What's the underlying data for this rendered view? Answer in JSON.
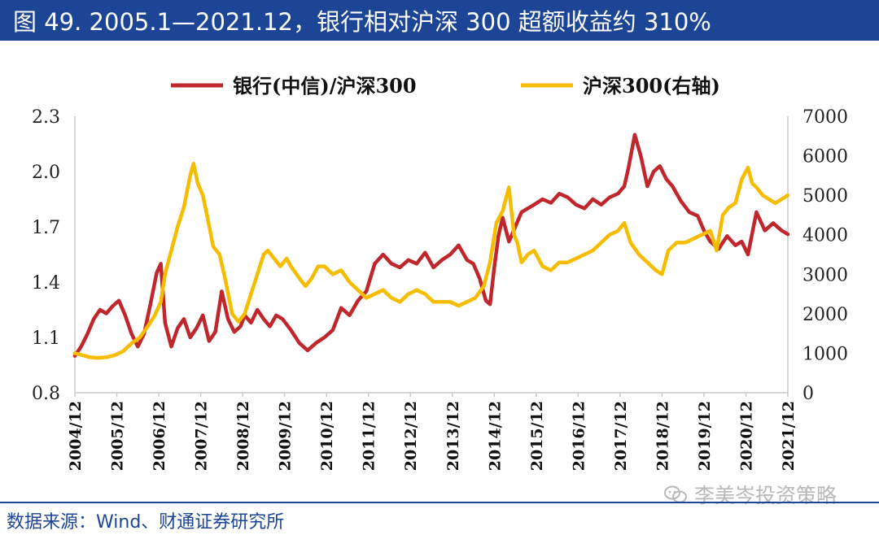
{
  "title": "图 49. 2005.1—2021.12，银行相对沪深 300 超额收益约 310%",
  "source": "数据来源：Wind、财通证券研究所",
  "watermark": "李美岑投资策略",
  "colors": {
    "title_bg": "#1c4595",
    "bank_ratio": "#c0272d",
    "csi300": "#f5bc00",
    "axis": "#c8c8c8"
  },
  "chart_data": {
    "type": "line",
    "title": "",
    "legend": {
      "placement": "top",
      "entries": [
        "银行(中信)/沪深300",
        "沪深300(右轴)"
      ]
    },
    "x_tick_labels": [
      "2004/12",
      "2005/12",
      "2006/12",
      "2007/12",
      "2008/12",
      "2009/12",
      "2010/12",
      "2011/12",
      "2012/12",
      "2013/12",
      "2014/12",
      "2015/12",
      "2016/12",
      "2017/12",
      "2018/12",
      "2019/12",
      "2020/12",
      "2021/12"
    ],
    "y_left": {
      "range": [
        0.8,
        2.3
      ],
      "ticks": [
        "0.8",
        "1.1",
        "1.4",
        "1.7",
        "2.0",
        "2.3"
      ]
    },
    "y_right": {
      "range": [
        0,
        7000
      ],
      "ticks": [
        "0",
        "1000",
        "2000",
        "3000",
        "4000",
        "5000",
        "6000",
        "7000"
      ]
    },
    "series": [
      {
        "name": "银行(中信)/沪深300",
        "axis": "left",
        "x": [
          2004.95,
          2005.1,
          2005.25,
          2005.4,
          2005.55,
          2005.7,
          2005.85,
          2006.0,
          2006.15,
          2006.3,
          2006.45,
          2006.6,
          2006.75,
          2006.9,
          2007.0,
          2007.1,
          2007.25,
          2007.4,
          2007.55,
          2007.7,
          2007.85,
          2008.0,
          2008.15,
          2008.3,
          2008.45,
          2008.6,
          2008.75,
          2008.9,
          2009.0,
          2009.15,
          2009.3,
          2009.45,
          2009.6,
          2009.75,
          2009.9,
          2010.1,
          2010.3,
          2010.5,
          2010.7,
          2010.9,
          2011.1,
          2011.3,
          2011.5,
          2011.7,
          2011.9,
          2012.1,
          2012.3,
          2012.5,
          2012.7,
          2012.9,
          2013.1,
          2013.3,
          2013.5,
          2013.7,
          2013.9,
          2014.1,
          2014.3,
          2014.45,
          2014.6,
          2014.75,
          2014.85,
          2014.95,
          2015.05,
          2015.15,
          2015.3,
          2015.45,
          2015.6,
          2015.75,
          2015.9,
          2016.1,
          2016.3,
          2016.5,
          2016.7,
          2016.9,
          2017.1,
          2017.3,
          2017.5,
          2017.7,
          2017.9,
          2018.05,
          2018.15,
          2018.3,
          2018.45,
          2018.6,
          2018.75,
          2018.9,
          2019.05,
          2019.2,
          2019.4,
          2019.6,
          2019.8,
          2019.95,
          2020.1,
          2020.3,
          2020.5,
          2020.7,
          2020.85,
          2021.0,
          2021.2,
          2021.4,
          2021.6,
          2021.8,
          2021.95
        ],
        "values": [
          1.0,
          1.05,
          1.12,
          1.2,
          1.25,
          1.23,
          1.27,
          1.3,
          1.22,
          1.12,
          1.05,
          1.12,
          1.28,
          1.45,
          1.5,
          1.18,
          1.05,
          1.15,
          1.2,
          1.1,
          1.15,
          1.22,
          1.08,
          1.13,
          1.35,
          1.2,
          1.13,
          1.16,
          1.22,
          1.18,
          1.25,
          1.2,
          1.16,
          1.22,
          1.2,
          1.14,
          1.07,
          1.03,
          1.07,
          1.1,
          1.14,
          1.26,
          1.22,
          1.3,
          1.35,
          1.5,
          1.55,
          1.5,
          1.48,
          1.52,
          1.5,
          1.56,
          1.48,
          1.52,
          1.55,
          1.6,
          1.52,
          1.5,
          1.42,
          1.3,
          1.28,
          1.48,
          1.65,
          1.75,
          1.62,
          1.7,
          1.78,
          1.8,
          1.82,
          1.85,
          1.83,
          1.88,
          1.86,
          1.82,
          1.8,
          1.85,
          1.82,
          1.86,
          1.88,
          1.92,
          2.02,
          2.2,
          2.08,
          1.92,
          2.0,
          2.03,
          1.96,
          1.92,
          1.84,
          1.78,
          1.76,
          1.68,
          1.62,
          1.58,
          1.65,
          1.6,
          1.62,
          1.55,
          1.78,
          1.68,
          1.72,
          1.68,
          1.66
        ]
      },
      {
        "name": "沪深300(右轴)",
        "axis": "right",
        "x": [
          2004.95,
          2005.1,
          2005.3,
          2005.5,
          2005.7,
          2005.9,
          2006.1,
          2006.3,
          2006.5,
          2006.7,
          2006.85,
          2007.0,
          2007.1,
          2007.25,
          2007.4,
          2007.55,
          2007.7,
          2007.78,
          2007.88,
          2008.0,
          2008.1,
          2008.25,
          2008.4,
          2008.55,
          2008.7,
          2008.85,
          2009.0,
          2009.15,
          2009.3,
          2009.45,
          2009.55,
          2009.7,
          2009.85,
          2010.0,
          2010.1,
          2010.3,
          2010.45,
          2010.6,
          2010.75,
          2010.9,
          2011.1,
          2011.3,
          2011.5,
          2011.7,
          2011.9,
          2012.1,
          2012.3,
          2012.5,
          2012.7,
          2012.9,
          2013.1,
          2013.3,
          2013.5,
          2013.7,
          2013.9,
          2014.1,
          2014.3,
          2014.5,
          2014.7,
          2014.85,
          2015.0,
          2015.15,
          2015.3,
          2015.42,
          2015.5,
          2015.6,
          2015.75,
          2015.9,
          2016.1,
          2016.3,
          2016.5,
          2016.7,
          2016.9,
          2017.1,
          2017.3,
          2017.5,
          2017.7,
          2017.9,
          2018.05,
          2018.2,
          2018.4,
          2018.6,
          2018.8,
          2018.95,
          2019.1,
          2019.3,
          2019.5,
          2019.7,
          2019.9,
          2020.1,
          2020.25,
          2020.4,
          2020.55,
          2020.7,
          2020.85,
          2021.0,
          2021.1,
          2021.2,
          2021.35,
          2021.5,
          2021.65,
          2021.8,
          2021.95
        ],
        "values": [
          1000,
          960,
          900,
          880,
          900,
          950,
          1050,
          1250,
          1400,
          1700,
          1950,
          2300,
          3000,
          3600,
          4200,
          4700,
          5500,
          5800,
          5300,
          5000,
          4500,
          3700,
          3500,
          2800,
          2000,
          1800,
          2000,
          2500,
          3000,
          3500,
          3600,
          3400,
          3200,
          3400,
          3200,
          2900,
          2700,
          2900,
          3200,
          3200,
          3000,
          3100,
          2800,
          2600,
          2400,
          2500,
          2600,
          2400,
          2300,
          2500,
          2600,
          2500,
          2300,
          2300,
          2300,
          2200,
          2300,
          2400,
          2700,
          3300,
          4300,
          4600,
          5200,
          4000,
          3800,
          3300,
          3500,
          3600,
          3200,
          3100,
          3300,
          3300,
          3400,
          3500,
          3600,
          3800,
          4000,
          4100,
          4300,
          3800,
          3500,
          3300,
          3100,
          3000,
          3600,
          3800,
          3800,
          3900,
          4000,
          4100,
          3600,
          4500,
          4700,
          4800,
          5400,
          5700,
          5300,
          5200,
          5000,
          4900,
          4800,
          4900,
          5000
        ]
      }
    ]
  }
}
